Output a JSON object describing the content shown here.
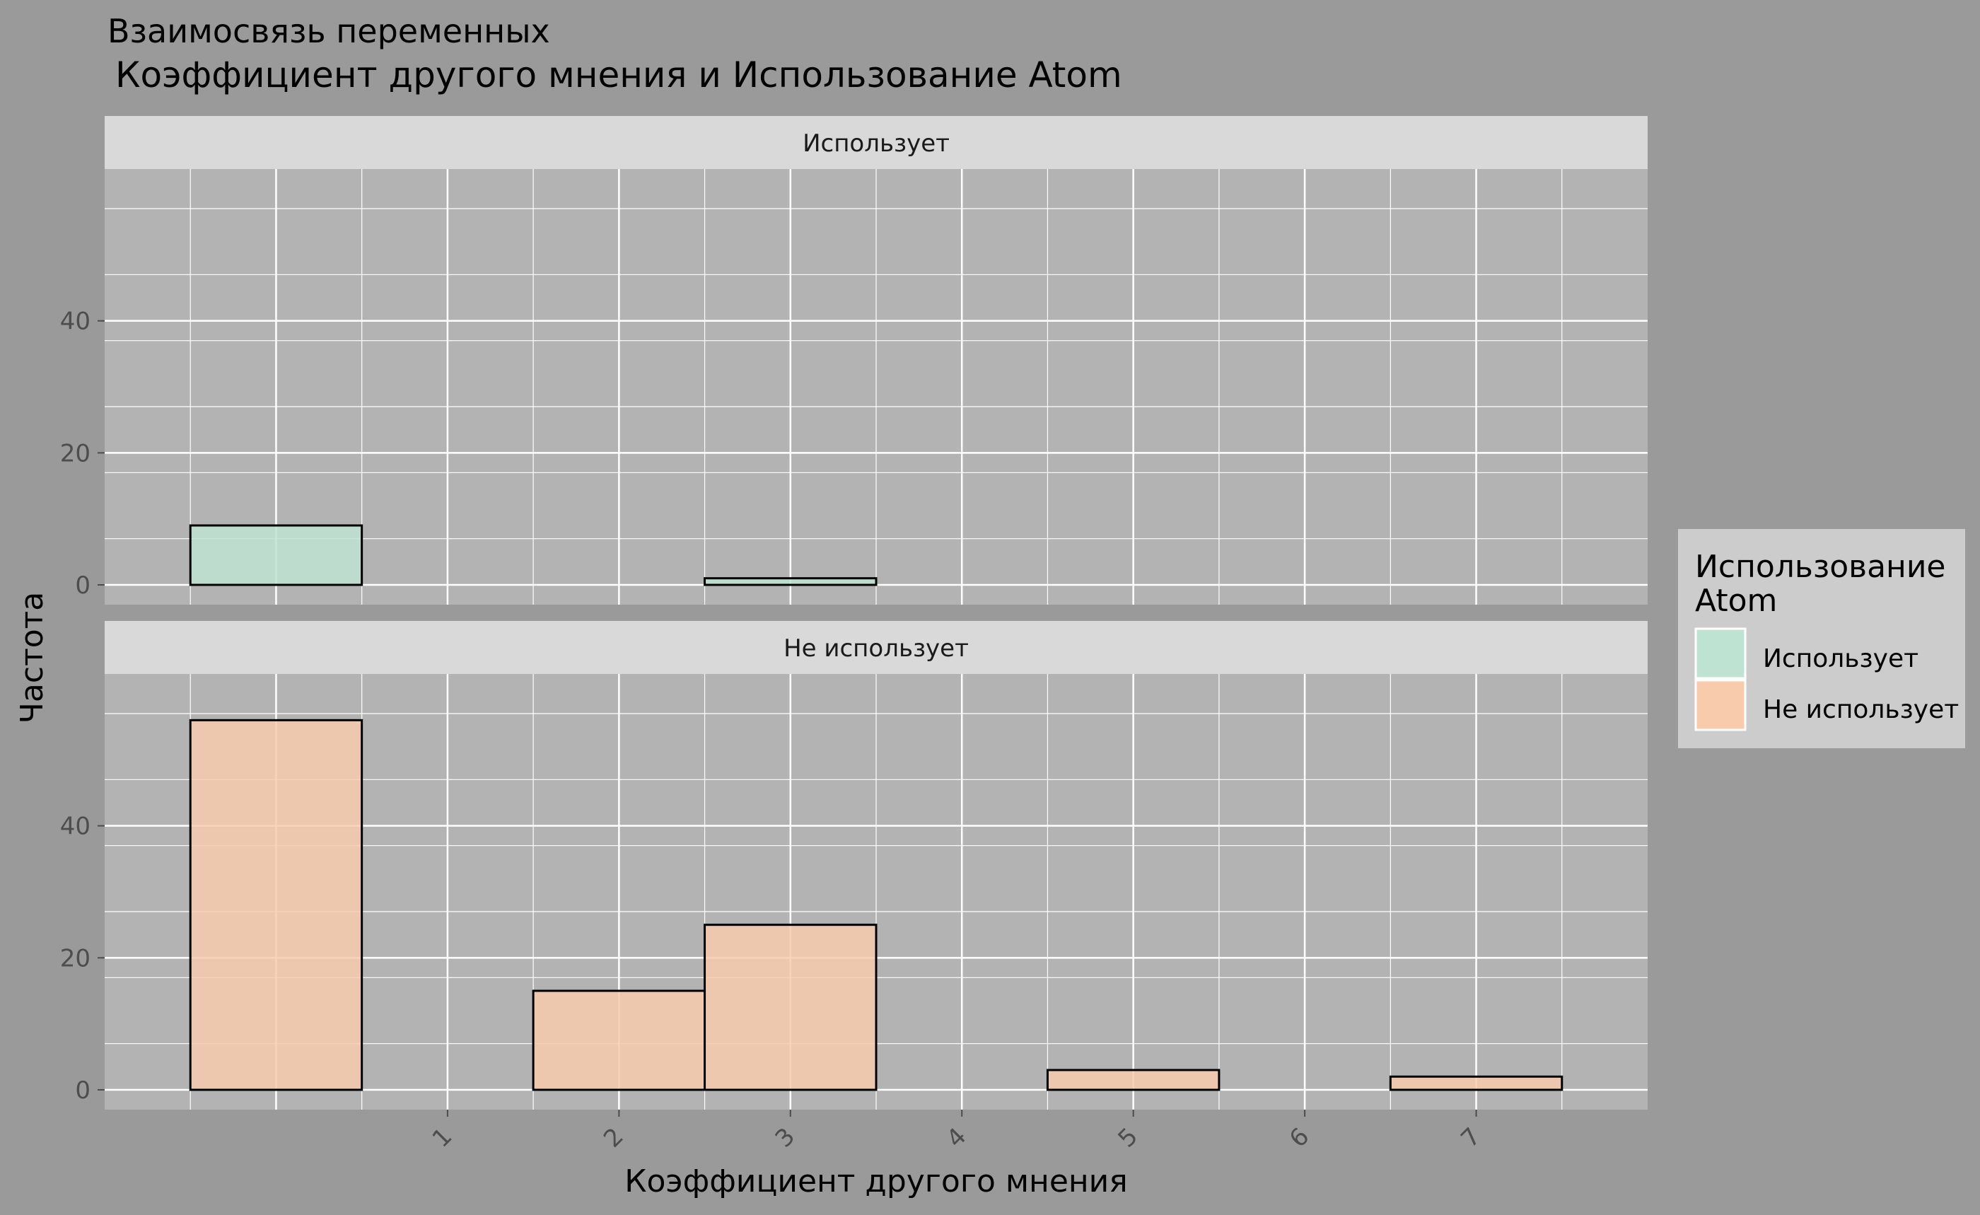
{
  "chart_data": {
    "type": "bar",
    "title": "Взаимосвязь переменных",
    "subtitle": "Коэффициент другого мнения и Использование Atom",
    "xlabel": "Коэффициент другого мнения",
    "ylabel": "Частота",
    "x_ticks": [
      "1",
      "2",
      "3",
      "4",
      "5",
      "6",
      "7"
    ],
    "x_range": [
      -1,
      8
    ],
    "bin_width": 1,
    "y_ticks": [
      0,
      20,
      40
    ],
    "ylim": [
      -3,
      63
    ],
    "grid": true,
    "legend": {
      "title_line1": "Использование",
      "title_line2": "Atom",
      "position": "right",
      "items": [
        {
          "label": "Использует",
          "color": "#bfe3d2"
        },
        {
          "label": "Не использует",
          "color": "#f8cbad"
        }
      ]
    },
    "panels": [
      {
        "label": "Использует",
        "color": "#bfe3d2",
        "bins": [
          {
            "x": 0,
            "count": 9
          },
          {
            "x": 1,
            "count": 0
          },
          {
            "x": 2,
            "count": 0
          },
          {
            "x": 3,
            "count": 1
          },
          {
            "x": 4,
            "count": 0
          },
          {
            "x": 5,
            "count": 0
          },
          {
            "x": 6,
            "count": 0
          },
          {
            "x": 7,
            "count": 0
          }
        ]
      },
      {
        "label": "Не использует",
        "color": "#f8cbad",
        "bins": [
          {
            "x": 0,
            "count": 56
          },
          {
            "x": 1,
            "count": 0
          },
          {
            "x": 2,
            "count": 15
          },
          {
            "x": 3,
            "count": 25
          },
          {
            "x": 4,
            "count": 0
          },
          {
            "x": 5,
            "count": 3
          },
          {
            "x": 6,
            "count": 0
          },
          {
            "x": 7,
            "count": 2
          }
        ]
      }
    ]
  },
  "colors": {
    "plot_background": "#9a9a9a",
    "panel_background": "#b3b3b3",
    "strip_background": "#d9d9d9",
    "legend_background": "#cccccc",
    "grid": "#ffffff",
    "axis_text": "#4d4d4d"
  }
}
